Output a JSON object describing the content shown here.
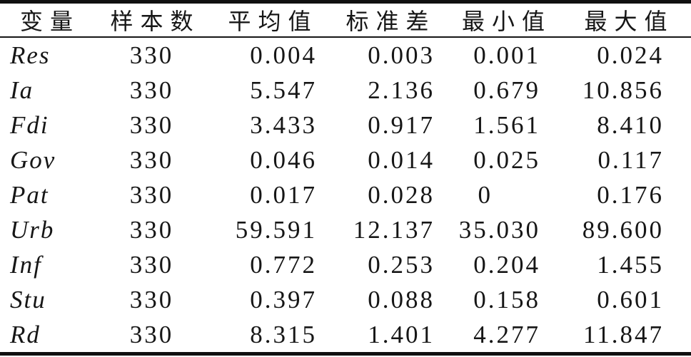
{
  "chart_data": {
    "type": "table",
    "title": "",
    "columns": [
      "变量",
      "样本数",
      "平均值",
      "标准差",
      "最小值",
      "最大值"
    ],
    "rows": [
      [
        "Res",
        "330",
        "0.004",
        "0.003",
        "0.001",
        "0.024"
      ],
      [
        "Ia",
        "330",
        "5.547",
        "2.136",
        "0.679",
        "10.856"
      ],
      [
        "Fdi",
        "330",
        "3.433",
        "0.917",
        "1.561",
        "8.410"
      ],
      [
        "Gov",
        "330",
        "0.046",
        "0.014",
        "0.025",
        "0.117"
      ],
      [
        "Pat",
        "330",
        "0.017",
        "0.028",
        "0",
        "0.176"
      ],
      [
        "Urb",
        "330",
        "59.591",
        "12.137",
        "35.030",
        "89.600"
      ],
      [
        "Inf",
        "330",
        "0.772",
        "0.253",
        "0.204",
        "1.455"
      ],
      [
        "Stu",
        "330",
        "0.397",
        "0.088",
        "0.158",
        "0.601"
      ],
      [
        "Rd",
        "330",
        "8.315",
        "1.401",
        "4.277",
        "11.847"
      ]
    ],
    "layout": {
      "style": "three-line-table",
      "grid": "off",
      "text_color": "#161616",
      "background_color": "#ffffff"
    }
  }
}
